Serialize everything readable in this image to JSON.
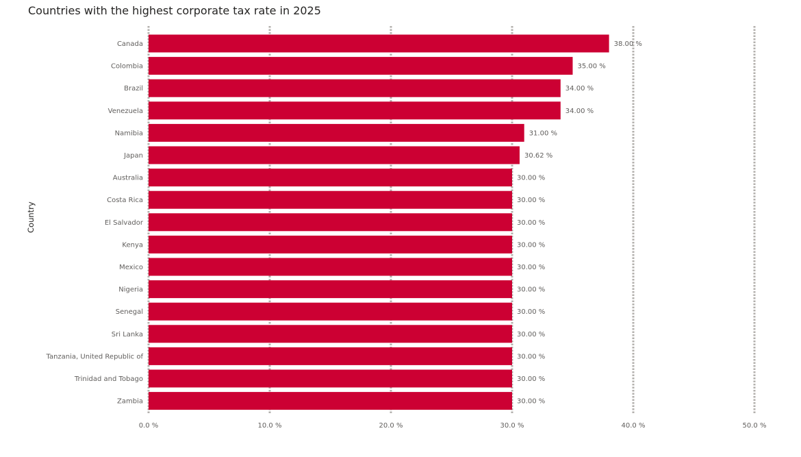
{
  "chart_data": {
    "type": "bar",
    "orientation": "horizontal",
    "title": "Countries with the highest corporate tax rate in 2025",
    "xlabel": "",
    "ylabel": "Country",
    "categories": [
      "Canada",
      "Colombia",
      "Brazil",
      "Venezuela",
      "Namibia",
      "Japan",
      "Australia",
      "Costa Rica",
      "El Salvador",
      "Kenya",
      "Mexico",
      "Nigeria",
      "Senegal",
      "Sri Lanka",
      "Tanzania, United Republic of",
      "Trinidad and Tobago",
      "Zambia"
    ],
    "values": [
      38.0,
      35.0,
      34.0,
      34.0,
      31.0,
      30.62,
      30.0,
      30.0,
      30.0,
      30.0,
      30.0,
      30.0,
      30.0,
      30.0,
      30.0,
      30.0,
      30.0
    ],
    "data_labels": [
      "38.00 %",
      "35.00 %",
      "34.00 %",
      "34.00 %",
      "31.00 %",
      "30.62 %",
      "30.00 %",
      "30.00 %",
      "30.00 %",
      "30.00 %",
      "30.00 %",
      "30.00 %",
      "30.00 %",
      "30.00 %",
      "30.00 %",
      "30.00 %",
      "30.00 %"
    ],
    "xlim": [
      0,
      50
    ],
    "x_ticks": [
      0,
      10,
      20,
      30,
      40,
      50
    ],
    "x_tick_labels": [
      "0.0 %",
      "10.0 %",
      "20.0 %",
      "30.0 %",
      "40.0 %",
      "50.0 %"
    ],
    "grid": true,
    "grid_style": "dotted vertical",
    "legend": "none",
    "bar_color": "#cc0033"
  }
}
